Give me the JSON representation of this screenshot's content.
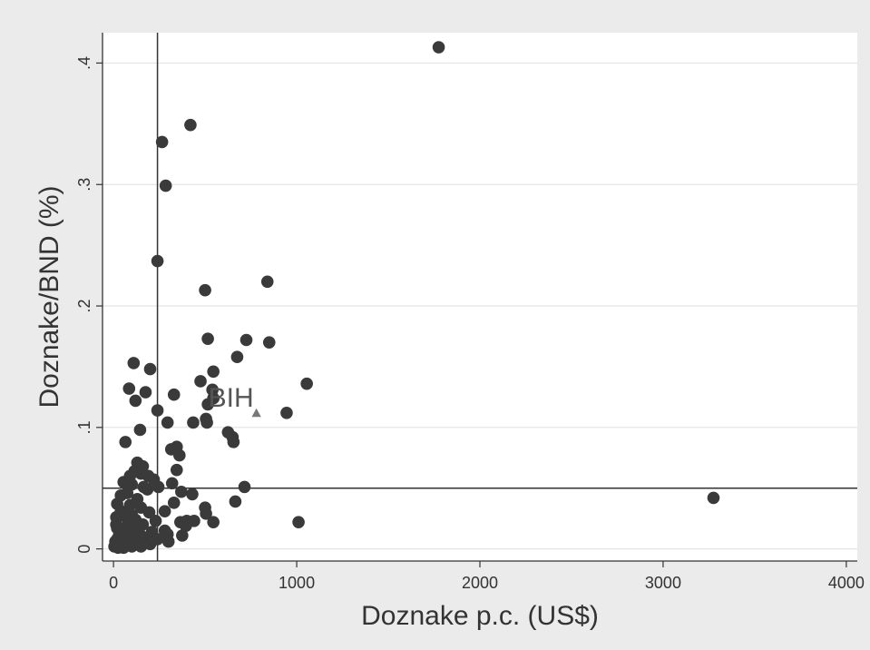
{
  "chart_data": {
    "type": "scatter",
    "title": "",
    "xlabel": "Doznake p.c. (US$)",
    "ylabel": "Doznake/BND (%)",
    "xlim": [
      -60,
      4060
    ],
    "ylim": [
      -0.01,
      0.425
    ],
    "xticks": [
      0,
      1000,
      2000,
      3000,
      4000
    ],
    "xtick_labels": [
      "0",
      "1000",
      "2000",
      "3000",
      "4000"
    ],
    "yticks": [
      0,
      0.1,
      0.2,
      0.3,
      0.4
    ],
    "ytick_labels": [
      "0",
      ".1",
      ".2",
      ".3",
      ".4"
    ],
    "grid": "horizontal",
    "reference_lines": {
      "x": 240,
      "y": 0.05
    },
    "marker_color": "#3a3a3a",
    "highlight_color": "#777777",
    "series": [
      {
        "points": [
          [
            1775,
            0.413
          ],
          [
            3275,
            0.042
          ],
          [
            420,
            0.349
          ],
          [
            265,
            0.335
          ],
          [
            285,
            0.299
          ],
          [
            240,
            0.237
          ],
          [
            500,
            0.213
          ],
          [
            840,
            0.22
          ],
          [
            515,
            0.173
          ],
          [
            725,
            0.172
          ],
          [
            850,
            0.17
          ],
          [
            675,
            0.158
          ],
          [
            110,
            0.153
          ],
          [
            200,
            0.148
          ],
          [
            545,
            0.146
          ],
          [
            1055,
            0.136
          ],
          [
            475,
            0.138
          ],
          [
            85,
            0.132
          ],
          [
            540,
            0.131
          ],
          [
            330,
            0.127
          ],
          [
            175,
            0.129
          ],
          [
            120,
            0.122
          ],
          [
            515,
            0.119
          ],
          [
            545,
            0.124
          ],
          [
            240,
            0.114
          ],
          [
            945,
            0.112
          ],
          [
            505,
            0.107
          ],
          [
            510,
            0.104
          ],
          [
            295,
            0.104
          ],
          [
            435,
            0.104
          ],
          [
            145,
            0.098
          ],
          [
            625,
            0.096
          ],
          [
            650,
            0.092
          ],
          [
            655,
            0.088
          ],
          [
            65,
            0.088
          ],
          [
            315,
            0.082
          ],
          [
            345,
            0.084
          ],
          [
            360,
            0.077
          ],
          [
            130,
            0.071
          ],
          [
            160,
            0.068
          ],
          [
            150,
            0.062
          ],
          [
            115,
            0.064
          ],
          [
            90,
            0.06
          ],
          [
            190,
            0.06
          ],
          [
            345,
            0.065
          ],
          [
            220,
            0.057
          ],
          [
            55,
            0.055
          ],
          [
            100,
            0.053
          ],
          [
            165,
            0.051
          ],
          [
            320,
            0.054
          ],
          [
            245,
            0.051
          ],
          [
            185,
            0.049
          ],
          [
            715,
            0.051
          ],
          [
            370,
            0.047
          ],
          [
            430,
            0.045
          ],
          [
            75,
            0.046
          ],
          [
            40,
            0.044
          ],
          [
            130,
            0.041
          ],
          [
            330,
            0.038
          ],
          [
            665,
            0.039
          ],
          [
            20,
            0.037
          ],
          [
            90,
            0.036
          ],
          [
            150,
            0.034
          ],
          [
            500,
            0.034
          ],
          [
            280,
            0.031
          ],
          [
            195,
            0.03
          ],
          [
            505,
            0.029
          ],
          [
            40,
            0.031
          ],
          [
            100,
            0.028
          ],
          [
            60,
            0.027
          ],
          [
            15,
            0.026
          ],
          [
            120,
            0.024
          ],
          [
            230,
            0.023
          ],
          [
            440,
            0.023
          ],
          [
            365,
            0.022
          ],
          [
            400,
            0.023
          ],
          [
            545,
            0.022
          ],
          [
            1010,
            0.022
          ],
          [
            15,
            0.02
          ],
          [
            75,
            0.019
          ],
          [
            160,
            0.02
          ],
          [
            395,
            0.019
          ],
          [
            20,
            0.017
          ],
          [
            130,
            0.016
          ],
          [
            280,
            0.015
          ],
          [
            50,
            0.014
          ],
          [
            90,
            0.013
          ],
          [
            210,
            0.014
          ],
          [
            295,
            0.012
          ],
          [
            30,
            0.011
          ],
          [
            150,
            0.011
          ],
          [
            375,
            0.011
          ],
          [
            55,
            0.01
          ],
          [
            110,
            0.009
          ],
          [
            20,
            0.008
          ],
          [
            240,
            0.008
          ],
          [
            80,
            0.007
          ],
          [
            170,
            0.007
          ],
          [
            10,
            0.006
          ],
          [
            300,
            0.006
          ],
          [
            45,
            0.005
          ],
          [
            130,
            0.005
          ],
          [
            200,
            0.004
          ],
          [
            15,
            0.003
          ],
          [
            70,
            0.003
          ],
          [
            100,
            0.002
          ],
          [
            25,
            0.001
          ],
          [
            5,
            0.002
          ],
          [
            55,
            0.001
          ],
          [
            150,
            0.002
          ]
        ]
      }
    ],
    "highlight": {
      "label": "BIH",
      "x": 780,
      "y": 0.112,
      "marker": "triangle"
    }
  }
}
